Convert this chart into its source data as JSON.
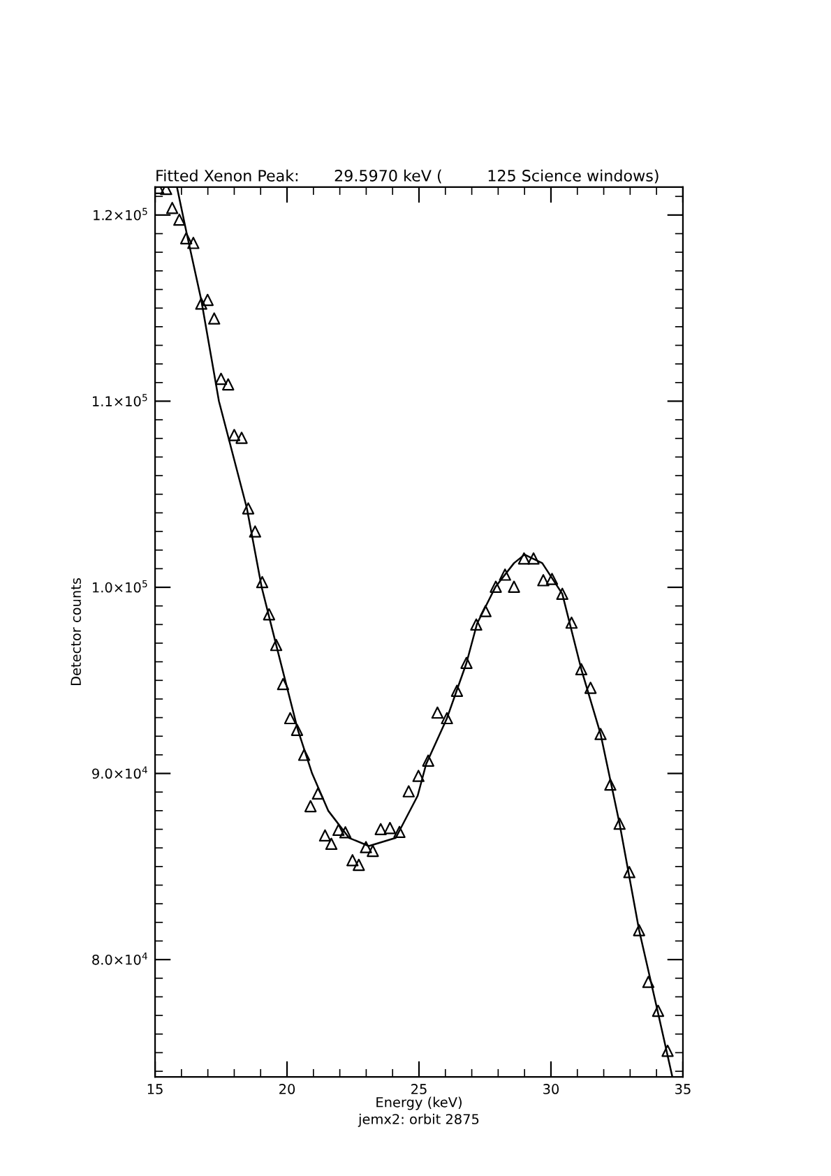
{
  "chart_data": {
    "type": "scatter",
    "title": "Fitted Xenon Peak:       29.5970 keV (         125 Science windows)",
    "xlabel": "Energy (keV)",
    "ylabel": "Detector counts",
    "annotations": [
      "jemx2: orbit 2875"
    ],
    "xlim": [
      15,
      35
    ],
    "xticks": [
      15,
      20,
      25,
      30,
      35
    ],
    "ylim": [
      73700,
      121500
    ],
    "yticks": [
      {
        "value": 80000,
        "label": "8.0×10$^{4}$"
      },
      {
        "value": 90000,
        "label": "9.0×10$^{4}$"
      },
      {
        "value": 100000,
        "label": "1.0×10$^{5}$"
      },
      {
        "value": 110000,
        "label": "1.1×10$^{5}$"
      },
      {
        "value": 120000,
        "label": "1.2×10$^{5}$"
      }
    ],
    "grid": false,
    "series": [
      {
        "color": "#000000",
        "marker": "triangle",
        "x": [
          15.12,
          15.42,
          15.65,
          15.92,
          16.18,
          16.45,
          16.75,
          16.99,
          17.24,
          17.5,
          17.77,
          18.0,
          18.28,
          18.53,
          18.79,
          19.06,
          19.32,
          19.59,
          19.85,
          20.12,
          20.38,
          20.65,
          20.89,
          21.17,
          21.44,
          21.68,
          21.95,
          22.21,
          22.48,
          22.72,
          22.99,
          23.25,
          23.55,
          23.9,
          24.26,
          24.61,
          24.98,
          25.35,
          25.7,
          26.06,
          26.44,
          26.8,
          27.17,
          27.52,
          27.91,
          28.26,
          28.6,
          28.98,
          29.34,
          29.71,
          30.04,
          30.43,
          30.78,
          31.15,
          31.5,
          31.88,
          32.25,
          32.6,
          32.97,
          33.34,
          33.69,
          34.06,
          34.42
        ],
        "values": [
          121450,
          121400,
          120380,
          119750,
          118750,
          118500,
          115240,
          115440,
          114440,
          111200,
          110900,
          108180,
          108030,
          104240,
          103000,
          100280,
          98550,
          96900,
          94800,
          92970,
          92340,
          91000,
          88240,
          88920,
          86670,
          86220,
          86970,
          86840,
          85340,
          85090,
          86040,
          85840,
          87010,
          87070,
          86860,
          89040,
          89870,
          90690,
          93270,
          92970,
          94440,
          95940,
          98000,
          98720,
          100030,
          100680,
          100030,
          101550,
          101550,
          100380,
          100450,
          99650,
          98100,
          95600,
          94600,
          92120,
          89400,
          87300,
          84700,
          81580,
          78800,
          77250,
          75100
        ]
      },
      {
        "type": "line",
        "color": "#000000",
        "marker": "none",
        "line_style": "solid",
        "x": [
          15.83,
          16.2,
          16.75,
          17.42,
          18.48,
          19.04,
          19.59,
          20.41,
          20.95,
          21.56,
          22.35,
          23.1,
          24.12,
          24.95,
          25.27,
          26.06,
          26.8,
          27.2,
          27.9,
          28.6,
          29.0,
          29.67,
          30.43,
          31.15,
          31.88,
          32.6,
          33.34,
          34.04,
          34.6
        ],
        "values": [
          121500,
          119000,
          115440,
          110000,
          104240,
          100000,
          96900,
          92340,
          90000,
          88000,
          86540,
          86100,
          86540,
          88800,
          90500,
          92970,
          95940,
          98050,
          100030,
          101300,
          101760,
          101300,
          99650,
          95600,
          92120,
          87300,
          81580,
          77250,
          73700
        ]
      }
    ]
  }
}
